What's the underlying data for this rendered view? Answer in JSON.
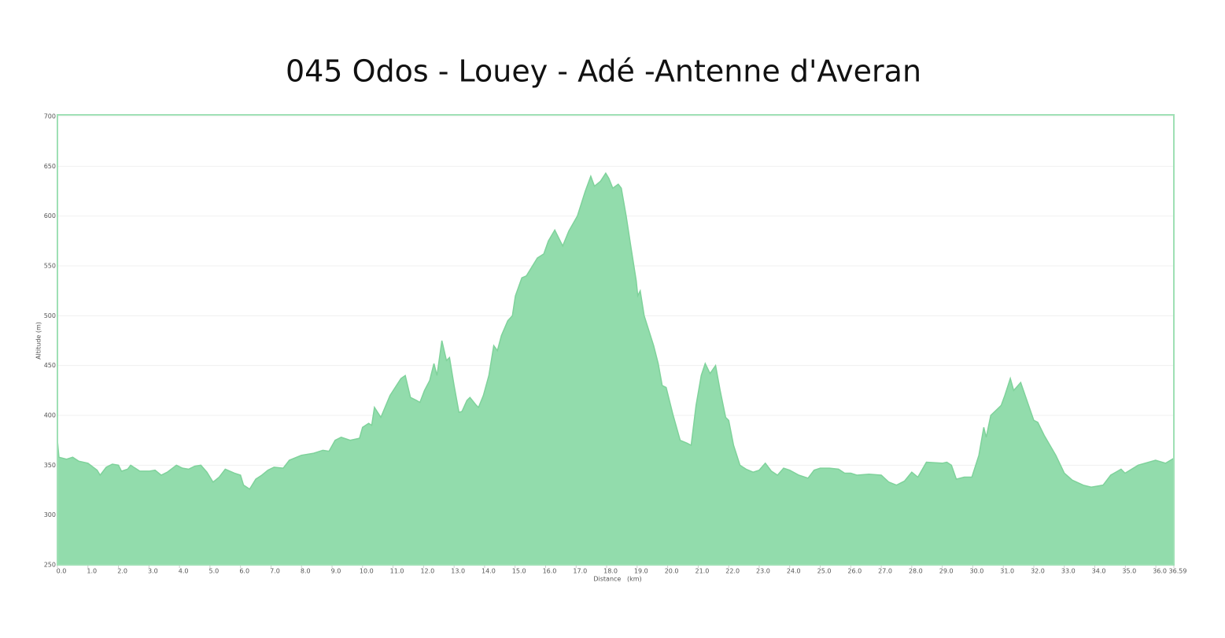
{
  "chart_data": {
    "type": "area",
    "title": "045 Odos - Louey - Adé -Antenne d'Averan",
    "x_label": "Distance   (km)",
    "y_label": "Altitude (m)",
    "color": "#92dcac",
    "line_color": "#7fd29b",
    "grid": true,
    "xlim": [
      0,
      36.59
    ],
    "ylim": [
      250,
      700
    ],
    "yticks": [
      250,
      300,
      350,
      400,
      450,
      500,
      550,
      600,
      650,
      700
    ],
    "xticks": [
      {
        "value": 0,
        "label": "0.0"
      },
      {
        "value": 1,
        "label": "1.0"
      },
      {
        "value": 2,
        "label": "2.0"
      },
      {
        "value": 3,
        "label": "3.0"
      },
      {
        "value": 4,
        "label": "4.0"
      },
      {
        "value": 5,
        "label": "5.0"
      },
      {
        "value": 6,
        "label": "6.0"
      },
      {
        "value": 7,
        "label": "7.0"
      },
      {
        "value": 8,
        "label": "8.0"
      },
      {
        "value": 9,
        "label": "9.0"
      },
      {
        "value": 10,
        "label": "10.0"
      },
      {
        "value": 11,
        "label": "11.0"
      },
      {
        "value": 12,
        "label": "12.0"
      },
      {
        "value": 13,
        "label": "13.0"
      },
      {
        "value": 14,
        "label": "14.0"
      },
      {
        "value": 15,
        "label": "15.0"
      },
      {
        "value": 16,
        "label": "16.0"
      },
      {
        "value": 17,
        "label": "17.0"
      },
      {
        "value": 18,
        "label": "18.0"
      },
      {
        "value": 19,
        "label": "19.0"
      },
      {
        "value": 20,
        "label": "20.0"
      },
      {
        "value": 21,
        "label": "21.0"
      },
      {
        "value": 22,
        "label": "22.0"
      },
      {
        "value": 23,
        "label": "23.0"
      },
      {
        "value": 24,
        "label": "24.0"
      },
      {
        "value": 25,
        "label": "25.0"
      },
      {
        "value": 26,
        "label": "26.0"
      },
      {
        "value": 27,
        "label": "27.0"
      },
      {
        "value": 28,
        "label": "28.0"
      },
      {
        "value": 29,
        "label": "29.0"
      },
      {
        "value": 30,
        "label": "30.0"
      },
      {
        "value": 31,
        "label": "31.0"
      },
      {
        "value": 32,
        "label": "32.0"
      },
      {
        "value": 33,
        "label": "33.0"
      },
      {
        "value": 34,
        "label": "34.0"
      },
      {
        "value": 35,
        "label": "35.0"
      },
      {
        "value": 36,
        "label": "36.0"
      },
      36.59
    ],
    "x": [
      0,
      0.05,
      0.3,
      0.5,
      0.7,
      1.0,
      1.3,
      1.4,
      1.6,
      1.8,
      2.0,
      2.1,
      2.3,
      2.4,
      2.7,
      3.0,
      3.2,
      3.4,
      3.6,
      3.9,
      4.1,
      4.3,
      4.5,
      4.7,
      4.9,
      5.1,
      5.3,
      5.5,
      5.8,
      6.0,
      6.1,
      6.3,
      6.5,
      6.7,
      6.9,
      7.1,
      7.4,
      7.6,
      8.0,
      8.4,
      8.7,
      8.9,
      9.1,
      9.3,
      9.6,
      9.9,
      10.0,
      10.2,
      10.3,
      10.39,
      10.6,
      10.9,
      11.26,
      11.4,
      11.57,
      11.77,
      11.88,
      12.03,
      12.2,
      12.34,
      12.44,
      12.6,
      12.75,
      12.85,
      13.0,
      13.16,
      13.26,
      13.42,
      13.52,
      13.73,
      13.8,
      13.96,
      14.14,
      14.3,
      14.42,
      14.55,
      14.76,
      14.91,
      15.01,
      15.22,
      15.37,
      15.53,
      15.73,
      15.94,
      16.09,
      16.3,
      16.56,
      16.76,
      17.04,
      17.3,
      17.48,
      17.6,
      17.8,
      17.97,
      18.07,
      18.2,
      18.38,
      18.48,
      18.64,
      18.79,
      18.97,
      19.02,
      19.1,
      19.23,
      19.54,
      19.69,
      19.82,
      19.95,
      20.18,
      20.41,
      20.64,
      20.77,
      20.93,
      21.1,
      21.23,
      21.39,
      21.57,
      21.72,
      21.9,
      22.0,
      22.16,
      22.37,
      22.57,
      22.8,
      23.0,
      23.2,
      23.4,
      23.6,
      23.8,
      24.0,
      24.3,
      24.6,
      24.8,
      25.0,
      25.3,
      25.6,
      25.8,
      26.0,
      26.2,
      26.6,
      27.0,
      27.25,
      27.5,
      27.76,
      28.0,
      28.2,
      28.48,
      29.0,
      29.15,
      29.3,
      29.46,
      29.72,
      29.97,
      30.2,
      30.36,
      30.44,
      30.59,
      30.93,
      31.05,
      31.23,
      31.34,
      31.57,
      31.83,
      32.0,
      32.13,
      32.34,
      32.72,
      33.0,
      33.26,
      33.62,
      33.88,
      34.27,
      34.52,
      34.86,
      34.99,
      35.42,
      35.99,
      36.32,
      36.59
    ],
    "values": [
      375,
      358,
      356,
      358,
      354,
      352,
      345,
      340,
      348,
      351,
      350,
      344,
      346,
      350,
      344,
      344,
      345,
      340,
      343,
      350,
      347,
      346,
      349,
      350,
      343,
      333,
      338,
      346,
      342,
      340,
      330,
      326,
      336,
      340,
      345,
      348,
      347,
      355,
      360,
      362,
      365,
      364,
      375,
      378,
      375,
      377,
      388,
      392,
      390,
      408,
      398,
      420,
      437,
      440,
      418,
      415,
      413,
      425,
      435,
      452,
      440,
      475,
      455,
      458,
      430,
      403,
      404,
      415,
      418,
      410,
      408,
      420,
      440,
      470,
      465,
      480,
      495,
      500,
      520,
      538,
      540,
      548,
      558,
      562,
      575,
      586,
      570,
      585,
      600,
      625,
      640,
      630,
      635,
      643,
      638,
      628,
      632,
      628,
      600,
      570,
      535,
      520,
      525,
      500,
      470,
      452,
      430,
      428,
      400,
      375,
      372,
      370,
      410,
      440,
      452,
      442,
      450,
      425,
      398,
      395,
      370,
      350,
      346,
      343,
      345,
      352,
      344,
      340,
      347,
      345,
      340,
      337,
      345,
      347,
      347,
      346,
      342,
      342,
      340,
      341,
      340,
      333,
      330,
      334,
      343,
      338,
      353,
      352,
      353,
      350,
      336,
      338,
      338,
      360,
      388,
      378,
      400,
      410,
      420,
      437,
      425,
      433,
      410,
      395,
      393,
      380,
      360,
      342,
      335,
      330,
      328,
      330,
      340,
      346,
      342,
      350,
      355,
      352,
      357
    ]
  }
}
